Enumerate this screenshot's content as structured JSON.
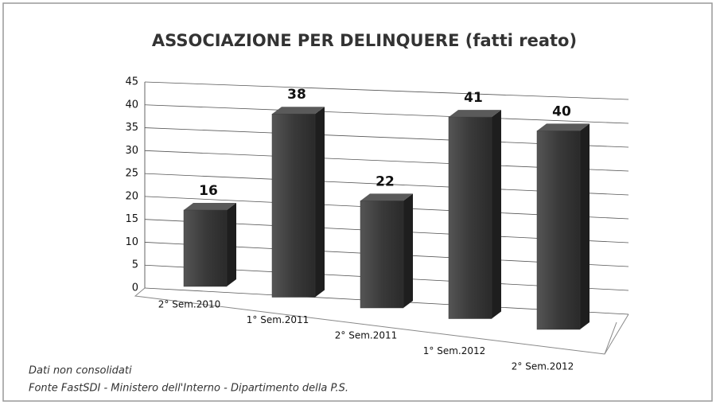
{
  "chart_data": {
    "type": "bar",
    "title": "ASSOCIAZIONE PER DELINQUERE (fatti reato)",
    "categories": [
      "2° Sem.2010",
      "1° Sem.2011",
      "2° Sem.2011",
      "1° Sem.2012",
      "2° Sem.2012"
    ],
    "values": [
      16,
      38,
      22,
      41,
      40
    ],
    "color": "#3a3a3a",
    "ylim": [
      0,
      45
    ],
    "yticks": [
      0,
      5,
      10,
      15,
      20,
      25,
      30,
      35,
      40,
      45
    ],
    "grid": true
  },
  "notes": [
    "Dati non consolidati",
    "Fonte FastSDI - Ministero dell'Interno - Dipartimento della P.S."
  ]
}
